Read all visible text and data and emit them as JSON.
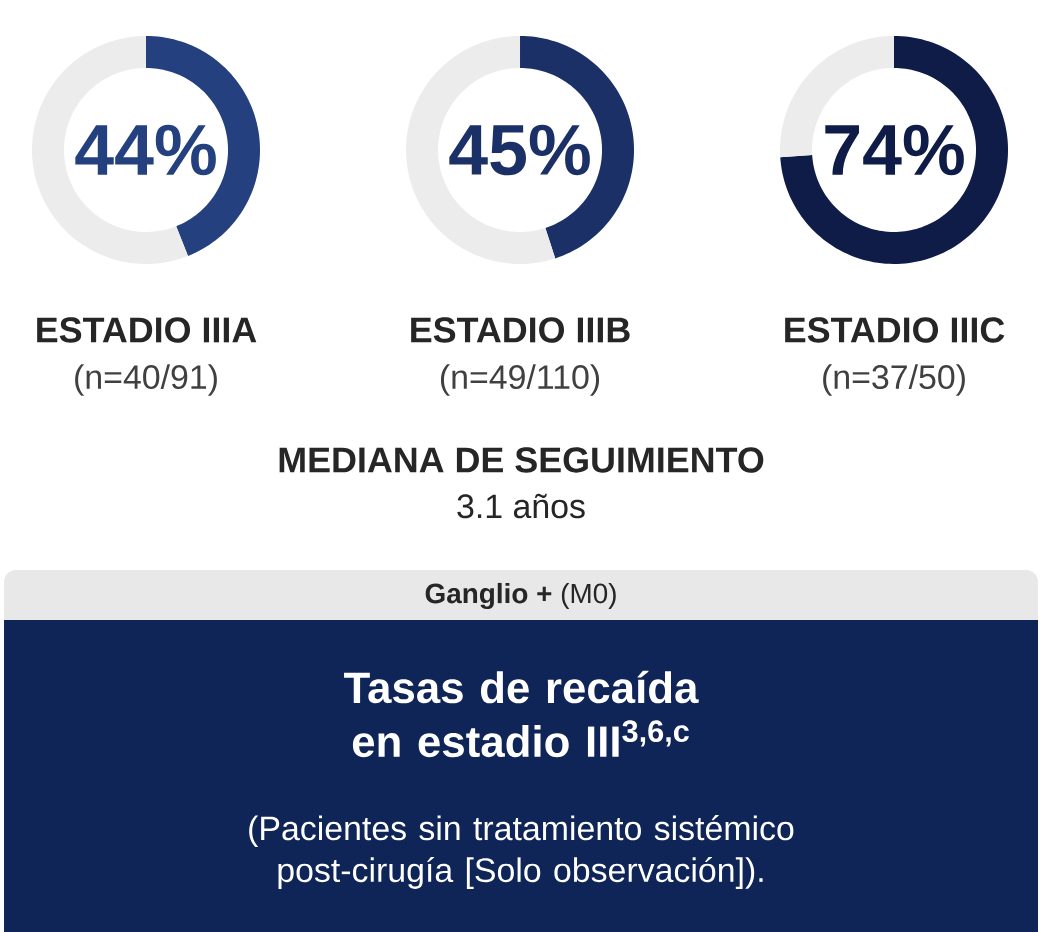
{
  "chart_data": [
    {
      "type": "donut",
      "title": "ESTADIO IIIA",
      "subtitle": "(n=40/91)",
      "categories": [
        null,
        null
      ],
      "values": [
        44,
        56
      ],
      "colors": [
        "#24407f",
        "#ececec"
      ],
      "annotations": [
        "44%"
      ]
    },
    {
      "type": "donut",
      "title": "ESTADIO IIIB",
      "subtitle": "(n=49/110)",
      "categories": [
        null,
        null
      ],
      "values": [
        45,
        55
      ],
      "colors": [
        "#1b3066",
        "#ececec"
      ],
      "annotations": [
        "45%"
      ]
    },
    {
      "type": "donut",
      "title": "ESTADIO IIIC",
      "subtitle": "(n=37/50)",
      "categories": [
        null,
        null
      ],
      "values": [
        74,
        26
      ],
      "colors": [
        "#0e1c47",
        "#ececec"
      ],
      "annotations": [
        "74%"
      ]
    },
    {
      "type": "other",
      "title": "Tasas de recaída en estadio III$^{3,6,c}$",
      "subtitle": "(Pacientes sin tratamiento sistémico post-cirugía [Solo observación]).",
      "annotations": [
        "MEDIANA DE SEGUIMIENTO",
        "3.1 años",
        "**Ganglio +** (M0)"
      ]
    }
  ]
}
